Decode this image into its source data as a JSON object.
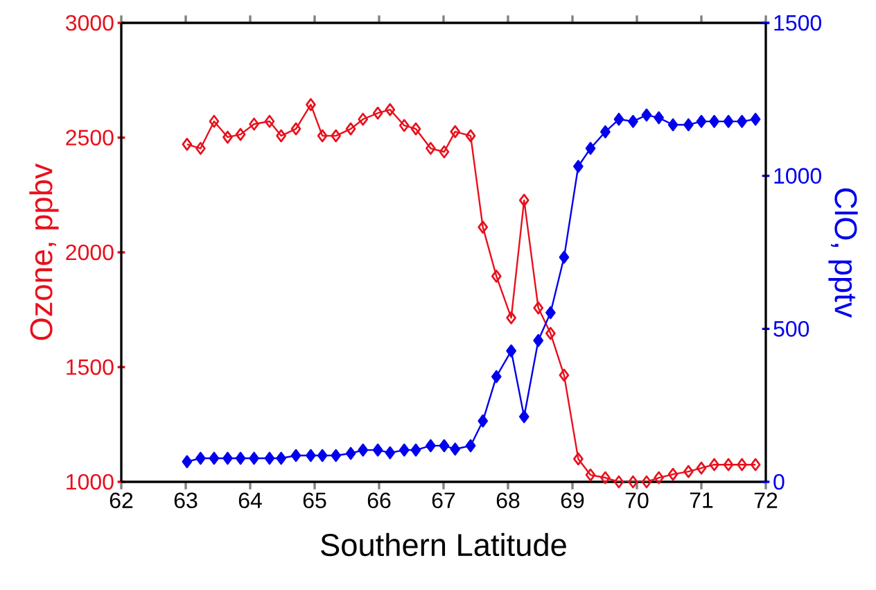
{
  "chart_data": {
    "type": "line",
    "xlabel": "Southern Latitude",
    "ylabel": "Ozone, ppbv",
    "y2label": "ClO, pptv",
    "xlim": [
      62,
      72
    ],
    "xticks": [
      62,
      63,
      64,
      65,
      66,
      67,
      68,
      69,
      70,
      71,
      72
    ],
    "ylim": [
      1000,
      3000
    ],
    "yticks": [
      1000,
      1500,
      2000,
      2500,
      3000
    ],
    "y2lim": [
      0,
      1500
    ],
    "y2ticks": [
      0,
      500,
      1000,
      1500
    ],
    "marker": "diamond",
    "line_style": "solid",
    "x": [
      63.02,
      63.23,
      63.44,
      63.65,
      63.85,
      64.06,
      64.3,
      64.48,
      64.71,
      64.94,
      65.12,
      65.33,
      65.56,
      65.75,
      65.98,
      66.17,
      66.39,
      66.57,
      66.8,
      67.01,
      67.18,
      67.42,
      67.61,
      67.82,
      68.05,
      68.25,
      68.47,
      68.66,
      68.87,
      69.09,
      69.28,
      69.51,
      69.72,
      69.94,
      70.15,
      70.34,
      70.56,
      70.8,
      71.0,
      71.2,
      71.42,
      71.63,
      71.84
    ],
    "series": [
      {
        "name": null,
        "color": "#e8101c",
        "values": [
          2471,
          2453,
          2571,
          2502,
          2514,
          2559,
          2571,
          2508,
          2538,
          2644,
          2508,
          2508,
          2538,
          2580,
          2607,
          2622,
          2553,
          2538,
          2453,
          2438,
          2526,
          2508,
          2110,
          1896,
          1715,
          2227,
          1758,
          1647,
          1465,
          1100,
          1030,
          1018,
          1000,
          1000,
          1000,
          1018,
          1033,
          1045,
          1060,
          1075,
          1075,
          1075,
          1075
        ]
      },
      {
        "name": null,
        "color": "#0000ee",
        "axis": "y2",
        "values": [
          66,
          77,
          77,
          77,
          77,
          77,
          77,
          77,
          86,
          86,
          86,
          86,
          93,
          104,
          104,
          95,
          104,
          104,
          118,
          118,
          107,
          118,
          199,
          344,
          428,
          213,
          462,
          553,
          734,
          1031,
          1090,
          1144,
          1185,
          1178,
          1199,
          1190,
          1167,
          1167,
          1178,
          1178,
          1178,
          1178,
          1185
        ]
      }
    ]
  }
}
